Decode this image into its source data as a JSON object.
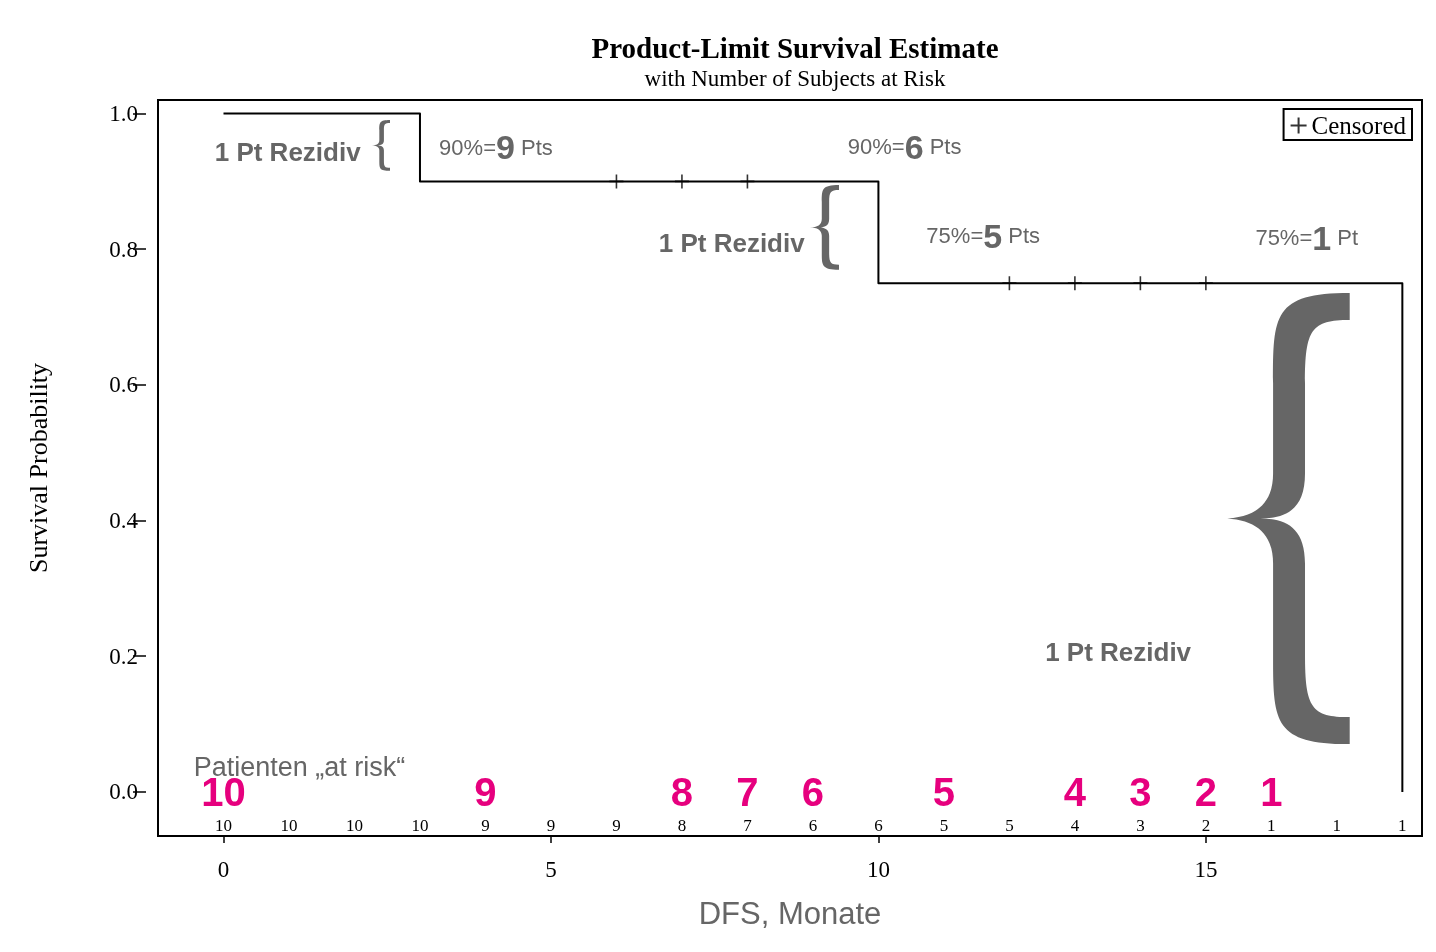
{
  "chart_data": {
    "type": "step",
    "title": "Product-Limit Survival Estimate",
    "subtitle": "with Number of Subjects at Risk",
    "xlabel": "DFS, Monate",
    "ylabel": "Survival Probability",
    "xlim": [
      -1,
      18.3
    ],
    "xticks": [
      0,
      5,
      10,
      15
    ],
    "ylim": [
      -0.065,
      1.02
    ],
    "yticks": [
      {
        "value": 0,
        "label": "0.0"
      },
      0.2,
      0.4,
      0.6,
      0.8,
      {
        "value": 1,
        "label": "1.0"
      }
    ],
    "grid": false,
    "legend": "top right",
    "series": [
      {
        "color": "#000000",
        "x": [
          0,
          3,
          10,
          18
        ],
        "values": [
          1,
          0.9,
          0.75,
          0
        ],
        "marker": "none"
      },
      {
        "type": "scatter",
        "name": "Censored",
        "color": "#000000",
        "x": [
          6,
          7,
          8,
          12,
          13,
          14,
          15
        ],
        "values": [
          0.9,
          0.9,
          0.9,
          0.75,
          0.75,
          0.75,
          0.75
        ],
        "marker": "cross"
      }
    ],
    "annotations": [
      "1 Pt Rezidiv",
      "90%=9 Pts",
      "90%=6 Pts",
      "1 Pt Rezidiv",
      "75%=5 Pts",
      "75%=1 Pt",
      "1 Pt Rezidiv",
      "Patienten „at risk“",
      "10",
      "9",
      "8",
      "7",
      "6",
      "5",
      "4",
      "3",
      "2",
      "1",
      "10",
      "10",
      "10",
      "10",
      "9",
      "9",
      "9",
      "8",
      "7",
      "6",
      "6",
      "5",
      "5",
      "4",
      "3",
      "2",
      "1",
      "1",
      "1"
    ]
  }
}
